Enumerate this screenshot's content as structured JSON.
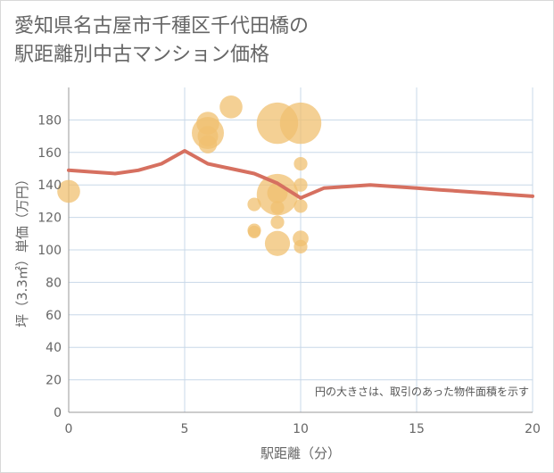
{
  "title_line1": "愛知県名古屋市千種区千代田橋の",
  "title_line2": "駅距離別中古マンション価格",
  "chart_data": {
    "type": "scatter",
    "title": "愛知県名古屋市千種区千代田橋の駅距離別中古マンション価格",
    "xlabel": "駅距離（分）",
    "ylabel": "坪（3.3㎡）単価（万円）",
    "xlim": [
      0,
      20
    ],
    "ylim": [
      0,
      200
    ],
    "xticks": [
      0,
      5,
      10,
      15,
      20
    ],
    "yticks": [
      0,
      20,
      40,
      60,
      80,
      100,
      120,
      140,
      160,
      180
    ],
    "grid": true,
    "note": "円の大きさは、取引のあった物件面積を示す",
    "colors": {
      "bubble": "#f0c070",
      "line": "#d67060",
      "grid": "#c8d8e8",
      "axis": "#999999"
    },
    "bubbles": [
      {
        "x": 0,
        "y": 136,
        "s": 3
      },
      {
        "x": 6,
        "y": 172,
        "s": 5
      },
      {
        "x": 6,
        "y": 178,
        "s": 3
      },
      {
        "x": 6,
        "y": 170,
        "s": 2.5
      },
      {
        "x": 6,
        "y": 165,
        "s": 2
      },
      {
        "x": 7,
        "y": 188,
        "s": 3
      },
      {
        "x": 8,
        "y": 128,
        "s": 1
      },
      {
        "x": 8,
        "y": 112,
        "s": 1
      },
      {
        "x": 8,
        "y": 111,
        "s": 0.8
      },
      {
        "x": 9,
        "y": 178,
        "s": 7
      },
      {
        "x": 9,
        "y": 134,
        "s": 7
      },
      {
        "x": 9,
        "y": 135,
        "s": 2.5
      },
      {
        "x": 9,
        "y": 126,
        "s": 1
      },
      {
        "x": 9,
        "y": 117,
        "s": 1
      },
      {
        "x": 9,
        "y": 104,
        "s": 3.5
      },
      {
        "x": 10,
        "y": 178,
        "s": 7
      },
      {
        "x": 10,
        "y": 153,
        "s": 1
      },
      {
        "x": 10,
        "y": 140,
        "s": 1
      },
      {
        "x": 10,
        "y": 127,
        "s": 1
      },
      {
        "x": 10,
        "y": 107,
        "s": 1.5
      },
      {
        "x": 10,
        "y": 102,
        "s": 1
      }
    ],
    "trend": {
      "x": [
        0,
        1,
        2,
        3,
        4,
        5,
        6,
        7,
        8,
        9,
        10,
        11,
        12,
        13,
        14,
        15,
        16,
        17,
        18,
        19,
        20
      ],
      "y": [
        149,
        148,
        147,
        149,
        153,
        161,
        153,
        150,
        147,
        141,
        132,
        138,
        139,
        140,
        139,
        138,
        137,
        136,
        135,
        134,
        133
      ]
    }
  }
}
